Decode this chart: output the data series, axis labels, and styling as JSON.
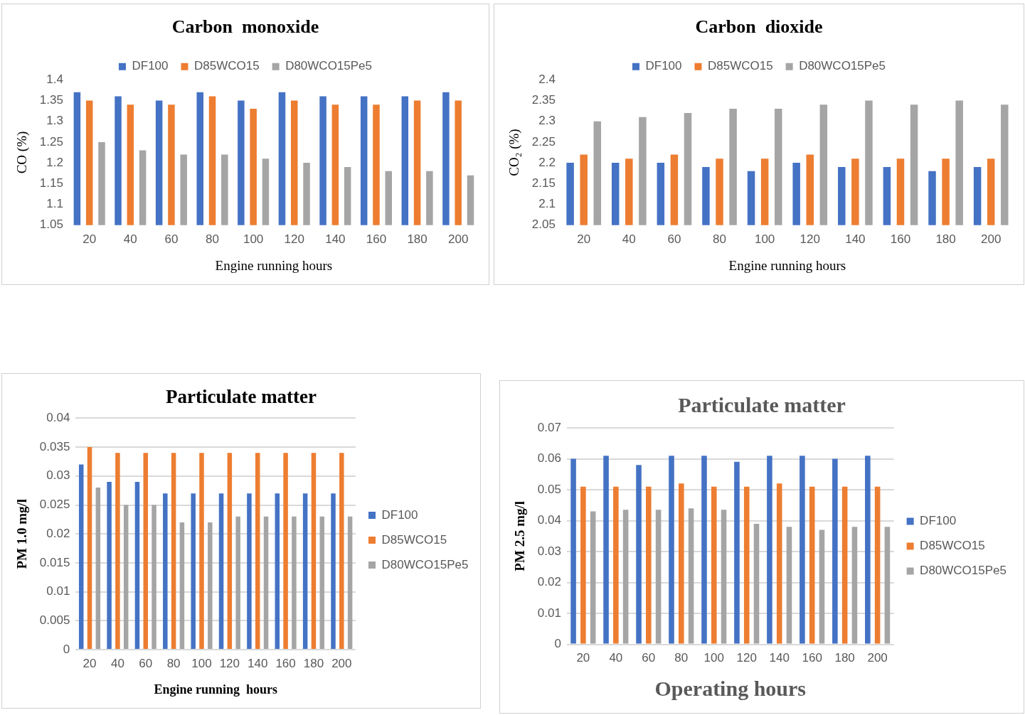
{
  "chart_data": [
    {
      "type": "bar",
      "title": "Carbon  monoxide",
      "xlabel": "Engine running hours",
      "ylabel": "CO (%)",
      "categories": [
        "20",
        "40",
        "60",
        "80",
        "100",
        "120",
        "140",
        "160",
        "180",
        "200"
      ],
      "ylim": [
        1.05,
        1.4
      ],
      "yticks": [
        1.05,
        1.1,
        1.15,
        1.2,
        1.25,
        1.3,
        1.35,
        1.4
      ],
      "grid": false,
      "legend": "top",
      "series": [
        {
          "name": "DF100",
          "color": "#4472c4",
          "values": [
            1.37,
            1.36,
            1.35,
            1.37,
            1.35,
            1.37,
            1.36,
            1.36,
            1.36,
            1.37
          ]
        },
        {
          "name": "D85WCO15",
          "color": "#ed7d31",
          "values": [
            1.35,
            1.34,
            1.34,
            1.36,
            1.33,
            1.35,
            1.34,
            1.34,
            1.35,
            1.35
          ]
        },
        {
          "name": "D80WCO15Pe5",
          "color": "#a5a5a5",
          "values": [
            1.25,
            1.23,
            1.22,
            1.22,
            1.21,
            1.2,
            1.19,
            1.18,
            1.18,
            1.17
          ]
        }
      ]
    },
    {
      "type": "bar",
      "title": "Carbon  dioxide",
      "xlabel": "Engine running hours",
      "ylabel": "CO₂ (%)",
      "categories": [
        "20",
        "40",
        "60",
        "80",
        "100",
        "120",
        "140",
        "160",
        "180",
        "200"
      ],
      "ylim": [
        2.05,
        2.4
      ],
      "yticks": [
        2.05,
        2.1,
        2.15,
        2.2,
        2.25,
        2.3,
        2.35,
        2.4
      ],
      "grid": false,
      "legend": "top",
      "series": [
        {
          "name": "DF100",
          "color": "#4472c4",
          "values": [
            2.2,
            2.2,
            2.2,
            2.19,
            2.18,
            2.2,
            2.19,
            2.19,
            2.18,
            2.19
          ]
        },
        {
          "name": "D85WCO15",
          "color": "#ed7d31",
          "values": [
            2.22,
            2.21,
            2.22,
            2.21,
            2.21,
            2.22,
            2.21,
            2.21,
            2.21,
            2.21
          ]
        },
        {
          "name": "D80WCO15Pe5",
          "color": "#a5a5a5",
          "values": [
            2.3,
            2.31,
            2.32,
            2.33,
            2.33,
            2.34,
            2.35,
            2.34,
            2.35,
            2.34
          ]
        }
      ]
    },
    {
      "type": "bar",
      "title": "Particulate matter",
      "xlabel": "Engine running  hours",
      "ylabel": "PM 1.0 mg/l",
      "categories": [
        "20",
        "40",
        "60",
        "80",
        "100",
        "120",
        "140",
        "160",
        "180",
        "200"
      ],
      "ylim": [
        0,
        0.04
      ],
      "yticks": [
        0,
        0.005,
        0.01,
        0.015,
        0.02,
        0.025,
        0.03,
        0.035,
        0.04
      ],
      "grid": "y",
      "legend": "right",
      "series": [
        {
          "name": "DF100",
          "color": "#4472c4",
          "values": [
            0.032,
            0.029,
            0.029,
            0.027,
            0.027,
            0.027,
            0.027,
            0.027,
            0.027,
            0.027
          ]
        },
        {
          "name": "D85WCO15",
          "color": "#ed7d31",
          "values": [
            0.035,
            0.034,
            0.034,
            0.034,
            0.034,
            0.034,
            0.034,
            0.034,
            0.034,
            0.034
          ]
        },
        {
          "name": "D80WCO15Pe5",
          "color": "#a5a5a5",
          "values": [
            0.028,
            0.025,
            0.025,
            0.022,
            0.022,
            0.023,
            0.023,
            0.023,
            0.023,
            0.023
          ]
        }
      ]
    },
    {
      "type": "bar",
      "title": "Particulate matter",
      "xlabel": "Operating hours",
      "ylabel": "PM 2.5 mg/l",
      "categories": [
        "20",
        "40",
        "60",
        "80",
        "100",
        "120",
        "140",
        "160",
        "180",
        "200"
      ],
      "ylim": [
        0,
        0.07
      ],
      "yticks": [
        0,
        0.01,
        0.02,
        0.03,
        0.04,
        0.05,
        0.06,
        0.07
      ],
      "grid": "y",
      "legend": "right",
      "series": [
        {
          "name": "DF100",
          "color": "#4472c4",
          "values": [
            0.06,
            0.061,
            0.058,
            0.061,
            0.061,
            0.059,
            0.061,
            0.061,
            0.06,
            0.061
          ]
        },
        {
          "name": "D85WCO15",
          "color": "#ed7d31",
          "values": [
            0.051,
            0.051,
            0.051,
            0.052,
            0.051,
            0.051,
            0.052,
            0.051,
            0.051,
            0.051
          ]
        },
        {
          "name": "D80WCO15Pe5",
          "color": "#a5a5a5",
          "values": [
            0.043,
            0.0435,
            0.0435,
            0.044,
            0.0435,
            0.039,
            0.038,
            0.037,
            0.038,
            0.038
          ]
        }
      ]
    }
  ]
}
